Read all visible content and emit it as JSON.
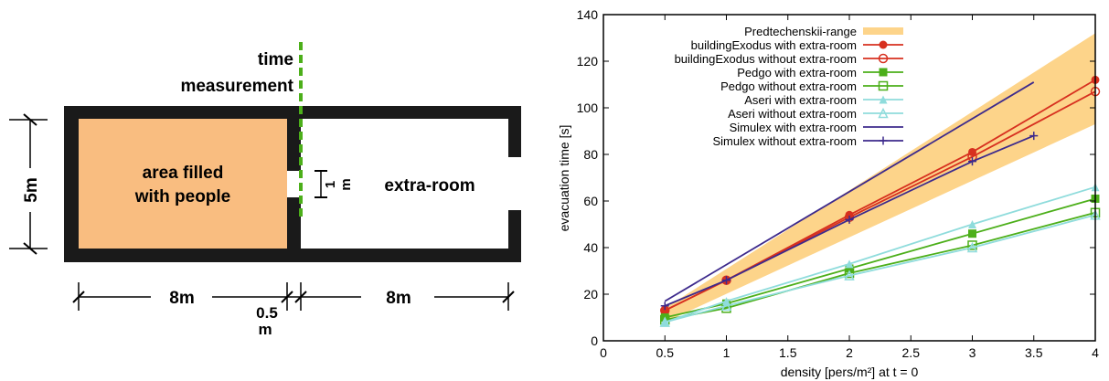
{
  "diagram": {
    "time_label_1": "time",
    "time_label_2": "measurement",
    "area_label_1": "area filled",
    "area_label_2": "with people",
    "door_label_1": "1",
    "door_label_2": "m",
    "extra_room_label": "extra-room",
    "height_label": "5m",
    "width_left_label": "8m",
    "wall_label_1": "0.5",
    "wall_label_2": "m",
    "width_right_label": "8m",
    "colors": {
      "area_fill": "#F9BD80",
      "wall": "#1a1a1a",
      "measurement_line": "#4CAF1A"
    }
  },
  "chart_data": {
    "type": "line",
    "xlabel": "density [pers/m²] at t = 0",
    "ylabel": "evacuation time [s]",
    "xlim": [
      0,
      4
    ],
    "ylim": [
      0,
      140
    ],
    "xticks": [
      "0",
      "0.5",
      "1",
      "1.5",
      "2",
      "2.5",
      "3",
      "3.5",
      "4"
    ],
    "xtick_values": [
      0,
      0.5,
      1,
      1.5,
      2,
      2.5,
      3,
      3.5,
      4
    ],
    "yticks": [
      "0",
      "20",
      "40",
      "60",
      "80",
      "100",
      "120",
      "140"
    ],
    "ytick_values": [
      0,
      20,
      40,
      60,
      80,
      100,
      120,
      140
    ],
    "legend_position": "top-left",
    "range": {
      "name": "Predtechenskii-range",
      "color": "#FDD48A",
      "x": [
        0.5,
        4
      ],
      "upper": [
        14,
        132
      ],
      "lower": [
        8,
        93
      ]
    },
    "series": [
      {
        "name": "buildingExodus with extra-room",
        "color": "#D7301F",
        "marker": "filled-circle",
        "x": [
          0.5,
          1,
          2,
          3,
          4
        ],
        "y": [
          13,
          26,
          54,
          81,
          112
        ]
      },
      {
        "name": "buildingExodus without extra-room",
        "color": "#D7301F",
        "marker": "open-circle",
        "x": [
          0.5,
          1,
          2,
          3,
          4
        ],
        "y": [
          13,
          26,
          53,
          79,
          107
        ]
      },
      {
        "name": "Pedgo with extra-room",
        "color": "#4CAF1A",
        "marker": "filled-square",
        "x": [
          0.5,
          1,
          2,
          3,
          4
        ],
        "y": [
          10,
          16,
          31,
          46,
          61
        ]
      },
      {
        "name": "Pedgo without extra-room",
        "color": "#4CAF1A",
        "marker": "open-square",
        "x": [
          0.5,
          1,
          2,
          3,
          4
        ],
        "y": [
          9,
          14,
          29,
          41,
          55
        ]
      },
      {
        "name": "Aseri with extra-room",
        "color": "#8FDCDC",
        "marker": "filled-triangle",
        "x": [
          0.5,
          1,
          2,
          3,
          4
        ],
        "y": [
          8,
          17,
          33,
          50,
          66
        ]
      },
      {
        "name": "Aseri without extra-room",
        "color": "#8FDCDC",
        "marker": "open-triangle",
        "x": [
          0.5,
          1,
          2,
          3,
          4
        ],
        "y": [
          8,
          15,
          28,
          40,
          54
        ]
      },
      {
        "name": "Simulex with extra-room",
        "color": "#3D2A8C",
        "marker": "none",
        "x": [
          0.5,
          3.5
        ],
        "y": [
          17,
          111
        ]
      },
      {
        "name": "Simulex without extra-room",
        "color": "#3D2A8C",
        "marker": "plus",
        "x": [
          0.5,
          1,
          2,
          3,
          3.5
        ],
        "y": [
          15,
          26,
          52,
          77,
          88
        ]
      }
    ]
  }
}
